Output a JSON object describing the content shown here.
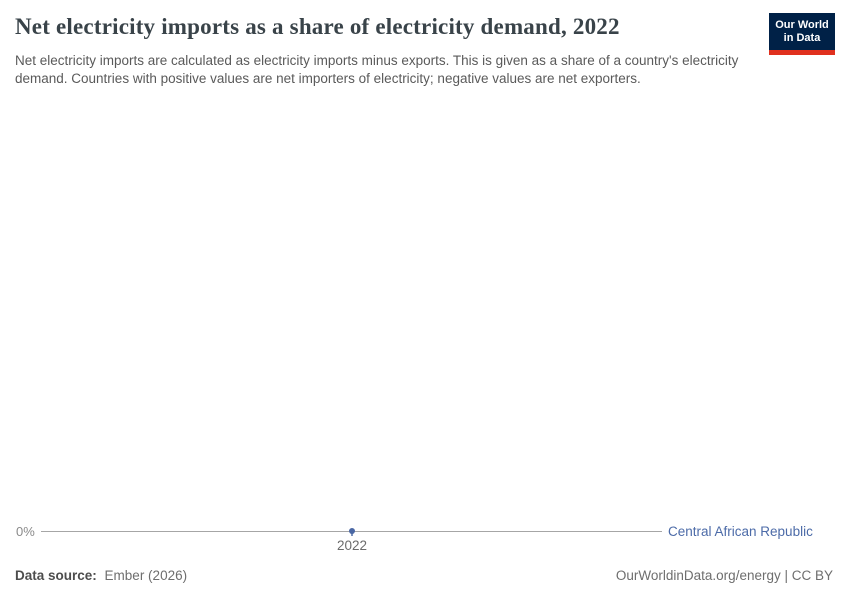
{
  "header": {
    "title": "Net electricity imports as a share of electricity demand, 2022",
    "subtitle": "Net electricity imports are calculated as electricity imports minus exports. This is given as a share of a country's electricity demand. Countries with positive values are net importers of electricity; negative values are net exporters.",
    "logo": {
      "line1": "Our World",
      "line2": "in Data"
    }
  },
  "chart_data": {
    "type": "line",
    "title": "Net electricity imports as a share of electricity demand, 2022",
    "x": [
      2022
    ],
    "xticks": [
      "2022"
    ],
    "yticks": [
      "0%"
    ],
    "xlabel": "",
    "ylabel": "",
    "grid": false,
    "legend_position": "right-of-line-end",
    "series": [
      {
        "name": "Central African Republic",
        "color": "#4c6ba8",
        "points": [
          {
            "x": 2022,
            "y": 0,
            "label": "0%"
          }
        ]
      }
    ]
  },
  "colors": {
    "accent_blue": "#4c6ba8",
    "marker_blue": "#4a67a4",
    "axis_line": "#a6a6a6",
    "logo_background": "#002147",
    "logo_red_bar": "#e0301e",
    "title_text": "#394349",
    "subtitle_text": "#5a5a5a"
  },
  "footer": {
    "datasource_label": "Data source:",
    "datasource_value": "Ember (2026)",
    "right_text": "OurWorldinData.org/energy | CC BY"
  }
}
